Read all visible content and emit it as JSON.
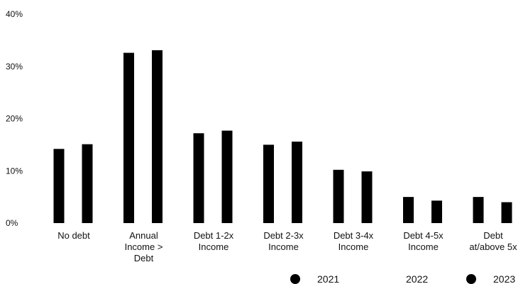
{
  "chart_data": {
    "type": "bar",
    "categories": [
      [
        "No debt"
      ],
      [
        "Annual",
        "Income >",
        "Debt"
      ],
      [
        "Debt 1-2x",
        "Income"
      ],
      [
        "Debt 2-3x",
        "Income"
      ],
      [
        "Debt 3-4x",
        "Income"
      ],
      [
        "Debt 4-5x",
        "Income"
      ],
      [
        "Debt",
        "at/above 5x"
      ]
    ],
    "series": [
      {
        "name": "2021",
        "values": [
          14.2,
          32.6,
          17.2,
          15.0,
          10.2,
          5.0,
          5.0
        ],
        "color": "#000000"
      },
      {
        "name": "2022",
        "values": [
          null,
          null,
          null,
          null,
          null,
          null,
          null
        ],
        "color": "#ffffff"
      },
      {
        "name": "2023",
        "values": [
          15.1,
          33.1,
          17.7,
          15.6,
          9.9,
          4.3,
          4.0
        ],
        "color": "#000000"
      }
    ],
    "yticks": [
      "0%",
      "10%",
      "20%",
      "30%",
      "40%"
    ],
    "ylim": [
      0,
      40
    ],
    "grid": false,
    "legend_position": "bottom-right"
  }
}
